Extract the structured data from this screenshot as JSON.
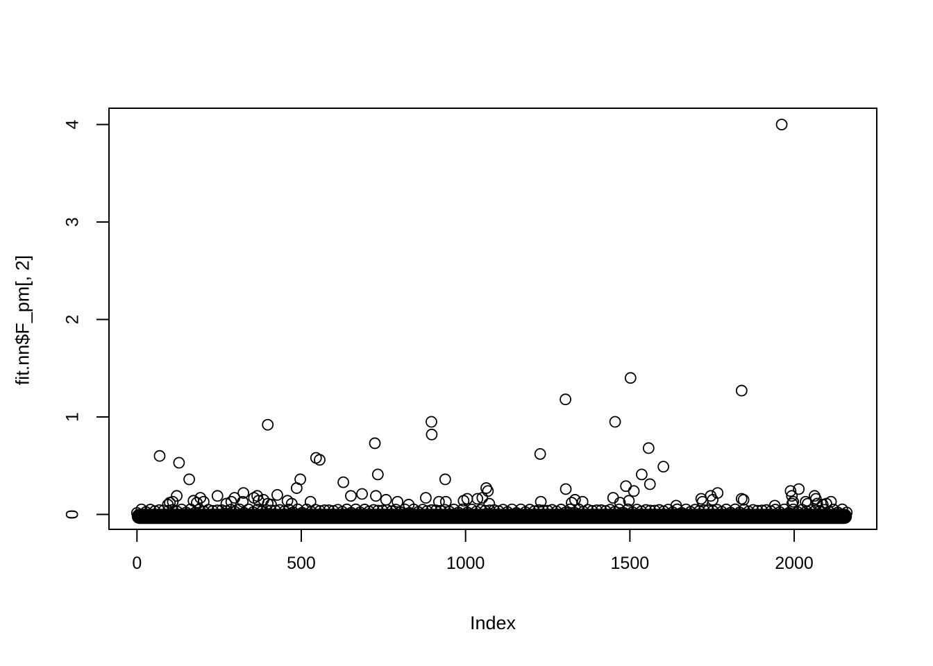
{
  "chart_data": {
    "type": "scatter",
    "title": "",
    "xlabel": "Index",
    "ylabel": "fit.nn$F_pm[, 2]",
    "x_ticks": [
      0,
      500,
      1000,
      1500,
      2000
    ],
    "y_ticks": [
      0,
      1,
      2,
      3,
      4
    ],
    "xlim": [
      -85,
      2251
    ],
    "ylim": [
      -0.15,
      4.17
    ],
    "grid": false,
    "legend": null,
    "marker": "open-circle",
    "marker_color": "#000000",
    "axis_color": "#000000",
    "background_color": "#ffffff",
    "n_points_total": 2175,
    "dense_band": {
      "x_min": 0,
      "x_max": 2160,
      "y_center": -0.02,
      "y_half_thickness": 0.078,
      "bump_count": 160,
      "bump_y_min": 0.015,
      "bump_y_max": 0.052,
      "description": "Thick solid band of ~2000 overlapping open circles with values near 0 spanning the full index range"
    },
    "points": [
      [
        69,
        0.6
      ],
      [
        94,
        0.1
      ],
      [
        100,
        0.12
      ],
      [
        109,
        0.13
      ],
      [
        121,
        0.19
      ],
      [
        128,
        0.53
      ],
      [
        159,
        0.36
      ],
      [
        172,
        0.14
      ],
      [
        182,
        0.12
      ],
      [
        193,
        0.17
      ],
      [
        203,
        0.13
      ],
      [
        245,
        0.19
      ],
      [
        272,
        0.11
      ],
      [
        287,
        0.13
      ],
      [
        297,
        0.17
      ],
      [
        322,
        0.13
      ],
      [
        324,
        0.22
      ],
      [
        356,
        0.17
      ],
      [
        366,
        0.19
      ],
      [
        370,
        0.14
      ],
      [
        385,
        0.15
      ],
      [
        398,
        0.92
      ],
      [
        398,
        0.11
      ],
      [
        408,
        0.1
      ],
      [
        427,
        0.2
      ],
      [
        458,
        0.14
      ],
      [
        471,
        0.11
      ],
      [
        486,
        0.27
      ],
      [
        497,
        0.36
      ],
      [
        528,
        0.13
      ],
      [
        545,
        0.58
      ],
      [
        556,
        0.56
      ],
      [
        628,
        0.33
      ],
      [
        651,
        0.19
      ],
      [
        685,
        0.21
      ],
      [
        724,
        0.73
      ],
      [
        727,
        0.19
      ],
      [
        733,
        0.41
      ],
      [
        758,
        0.15
      ],
      [
        793,
        0.13
      ],
      [
        827,
        0.1
      ],
      [
        879,
        0.17
      ],
      [
        896,
        0.95
      ],
      [
        897,
        0.82
      ],
      [
        919,
        0.13
      ],
      [
        938,
        0.36
      ],
      [
        940,
        0.13
      ],
      [
        994,
        0.14
      ],
      [
        1005,
        0.16
      ],
      [
        1036,
        0.16
      ],
      [
        1051,
        0.17
      ],
      [
        1063,
        0.27
      ],
      [
        1068,
        0.24
      ],
      [
        1072,
        0.11
      ],
      [
        1227,
        0.62
      ],
      [
        1229,
        0.13
      ],
      [
        1304,
        1.18
      ],
      [
        1305,
        0.26
      ],
      [
        1323,
        0.12
      ],
      [
        1333,
        0.15
      ],
      [
        1356,
        0.13
      ],
      [
        1449,
        0.17
      ],
      [
        1455,
        0.95
      ],
      [
        1470,
        0.12
      ],
      [
        1488,
        0.29
      ],
      [
        1497,
        0.14
      ],
      [
        1502,
        1.4
      ],
      [
        1512,
        0.24
      ],
      [
        1536,
        0.41
      ],
      [
        1557,
        0.68
      ],
      [
        1561,
        0.31
      ],
      [
        1602,
        0.49
      ],
      [
        1641,
        0.09
      ],
      [
        1717,
        0.16
      ],
      [
        1721,
        0.13
      ],
      [
        1746,
        0.19
      ],
      [
        1752,
        0.15
      ],
      [
        1767,
        0.22
      ],
      [
        1840,
        1.27
      ],
      [
        1840,
        0.16
      ],
      [
        1846,
        0.15
      ],
      [
        1941,
        0.09
      ],
      [
        1962,
        4.0
      ],
      [
        1989,
        0.24
      ],
      [
        1993,
        0.19
      ],
      [
        1994,
        0.11
      ],
      [
        1997,
        0.13
      ],
      [
        2014,
        0.26
      ],
      [
        2035,
        0.13
      ],
      [
        2041,
        0.11
      ],
      [
        2062,
        0.19
      ],
      [
        2066,
        0.16
      ],
      [
        2070,
        0.11
      ],
      [
        2087,
        0.1
      ],
      [
        2098,
        0.11
      ],
      [
        2112,
        0.13
      ]
    ]
  }
}
